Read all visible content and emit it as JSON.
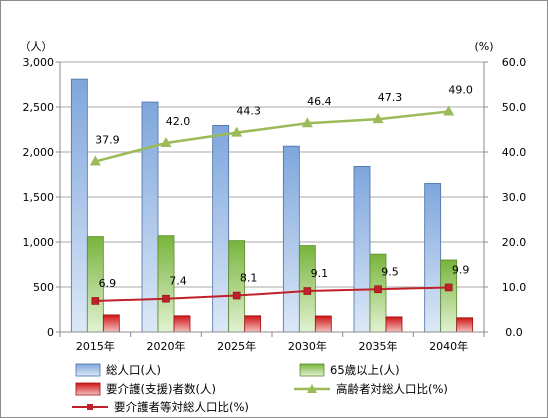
{
  "chart_data": {
    "type": "bar",
    "categories": [
      "2015年",
      "2020年",
      "2025年",
      "2030年",
      "2035年",
      "2040年"
    ],
    "y_left_unit": "（人）",
    "y_right_unit": "(%)",
    "ylim_left": [
      0,
      3000
    ],
    "ylim_right": [
      0,
      60
    ],
    "yticks_left": [
      "0",
      "500",
      "1,000",
      "1,500",
      "2,000",
      "2,500",
      "3,000"
    ],
    "yticks_right": [
      "0.0",
      "10.0",
      "20.0",
      "30.0",
      "40.0",
      "50.0",
      "60.0"
    ],
    "grid": true,
    "legend_position": "bottom",
    "bar_series": [
      {
        "name": "総人口(人)",
        "values": [
          2810,
          2555,
          2295,
          2065,
          1840,
          1650
        ],
        "color": "#7ea6dc",
        "light": "#dce8f7"
      },
      {
        "name": "65歳以上(人)",
        "values": [
          1060,
          1070,
          1015,
          960,
          865,
          800
        ],
        "color": "#78b43c",
        "light": "#e2f2d2"
      },
      {
        "name": "要介護(支援)者数(人)",
        "values": [
          190,
          180,
          180,
          178,
          168,
          158
        ],
        "color": "#d01414",
        "light": "#f3c0c0"
      }
    ],
    "line_series": [
      {
        "name": "高齢者対総人口比(%)",
        "values": [
          37.9,
          42.0,
          44.3,
          46.4,
          47.3,
          49.0
        ],
        "labels": [
          "37.9",
          "42.0",
          "44.3",
          "46.4",
          "47.3",
          "49.0"
        ],
        "color": "#9bbb59",
        "marker": "triangle"
      },
      {
        "name": "要介護者等対総人口比(%)",
        "values": [
          6.9,
          7.4,
          8.1,
          9.1,
          9.5,
          9.9
        ],
        "labels": [
          "6.9",
          "7.4",
          "8.1",
          "9.1",
          "9.5",
          "9.9"
        ],
        "color": "#c0202a",
        "marker": "square"
      }
    ]
  }
}
